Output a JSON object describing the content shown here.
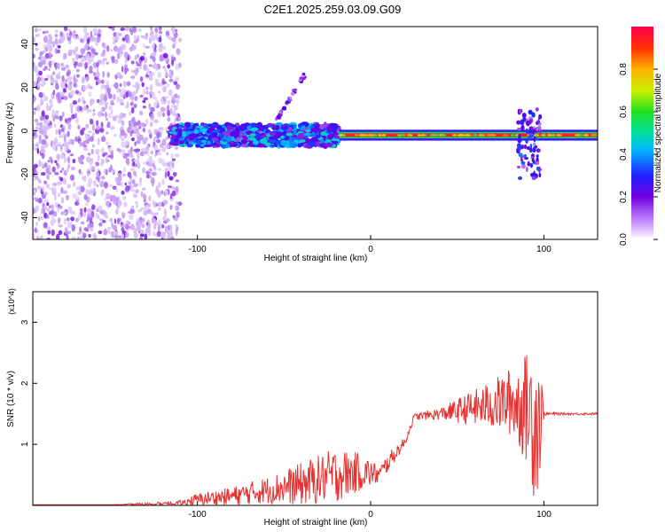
{
  "figure": {
    "title": "C2E1.2025.259.03.09.G09"
  },
  "chart_data": [
    {
      "type": "heatmap",
      "title": "",
      "xlabel": "Height of straight line (km)",
      "ylabel": "Frequency (Hz)",
      "xlim": [
        -195,
        131
      ],
      "ylim": [
        -50,
        48
      ],
      "xticks": [
        -100,
        0,
        100
      ],
      "yticks": [
        -40,
        -20,
        0,
        20,
        40
      ],
      "colorbar": {
        "label": "Normalized spectral amplitude",
        "range": [
          0,
          1
        ],
        "ticks": [
          "0.0",
          "0.2",
          "0.4",
          "0.6",
          "0.8"
        ],
        "tick_values": [
          0.0,
          0.2,
          0.4,
          0.6,
          0.8
        ],
        "colormap": [
          "#ffffff",
          "#b07ef0",
          "#6a00e0",
          "#2020ff",
          "#00c8ff",
          "#00e060",
          "#c8f000",
          "#ffc000",
          "#ff4000",
          "#ff0040"
        ]
      },
      "regions": [
        {
          "name": "noise",
          "x_range": [
            -195,
            -110
          ],
          "freq_range": [
            -50,
            48
          ],
          "amplitude": 0.15
        },
        {
          "name": "signal-band-1",
          "x_range": [
            -115,
            -18
          ],
          "freq_center": -2,
          "freq_spread": 5,
          "amplitude": 0.35
        },
        {
          "name": "diagonal-streak",
          "x_range": [
            -55,
            -38
          ],
          "freq_range": [
            4,
            26
          ],
          "amplitude": 0.2
        },
        {
          "name": "signal-band-2",
          "x_range": [
            -18,
            131
          ],
          "freq_center": -2,
          "freq_spread": 1.5,
          "amplitude": 0.95
        },
        {
          "name": "disturbance",
          "x_range": [
            85,
            98
          ],
          "freq_range": [
            -22,
            10
          ],
          "amplitude": 0.3
        }
      ]
    },
    {
      "type": "line",
      "title": "",
      "xlabel": "Height of straight line (km)",
      "ylabel": "SNR (10 * v/v)",
      "y_multiplier": "(x10^4)",
      "xlim": [
        -195,
        131
      ],
      "ylim": [
        0,
        3.5
      ],
      "xticks": [
        -100,
        0,
        100
      ],
      "yticks": [
        1,
        2,
        3
      ],
      "series": [
        {
          "name": "SNR",
          "color": "#e83030",
          "x": [
            -195,
            -150,
            -110,
            -100,
            -80,
            -60,
            -40,
            -20,
            -5,
            5,
            10,
            20,
            25,
            40,
            60,
            70,
            80,
            90,
            95,
            98,
            100,
            110,
            131
          ],
          "y": [
            0.01,
            0.01,
            0.03,
            0.1,
            0.15,
            0.25,
            0.35,
            0.5,
            0.55,
            0.5,
            0.7,
            1.05,
            1.45,
            1.5,
            1.6,
            1.65,
            1.7,
            1.6,
            1.4,
            1.5,
            1.5,
            1.5,
            1.5
          ],
          "noise": [
            0,
            0,
            0.05,
            0.1,
            0.15,
            0.22,
            0.35,
            0.45,
            0.3,
            0.15,
            0.15,
            0.08,
            0.05,
            0.1,
            0.3,
            0.4,
            0.55,
            0.9,
            1.4,
            1.0,
            0.03,
            0.02,
            0.02
          ]
        }
      ]
    }
  ]
}
